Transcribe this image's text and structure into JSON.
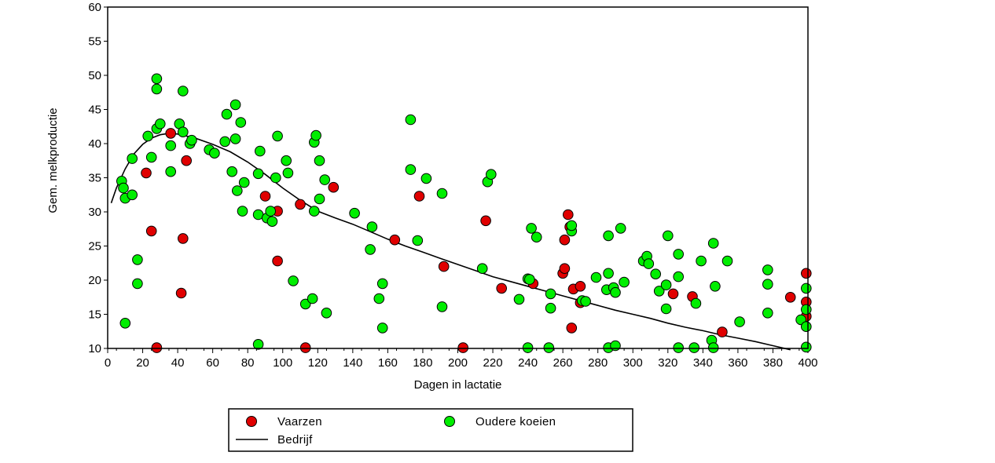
{
  "chart_data": {
    "type": "scatter",
    "xlabel": "Dagen in lactatie",
    "ylabel": "Gem. melkproductie",
    "xlim": [
      0,
      400
    ],
    "ylim": [
      10,
      60
    ],
    "xticks": [
      0,
      20,
      40,
      60,
      80,
      100,
      120,
      140,
      160,
      180,
      200,
      220,
      240,
      260,
      280,
      300,
      320,
      340,
      360,
      380,
      400
    ],
    "yticks": [
      10,
      15,
      20,
      25,
      30,
      35,
      40,
      45,
      50,
      55,
      60
    ],
    "legend_position": "bottom",
    "colors": {
      "vaarzen": "#e00000",
      "oudere": "#00ee00",
      "line": "#000000",
      "marker_edge": "#000000"
    },
    "series": [
      {
        "name": "Vaarzen",
        "kind": "scatter",
        "points": [
          [
            22,
            35.7
          ],
          [
            25,
            27.2
          ],
          [
            28,
            10.1
          ],
          [
            36,
            41.5
          ],
          [
            42,
            18.1
          ],
          [
            43,
            26.1
          ],
          [
            45,
            37.5
          ],
          [
            90,
            32.3
          ],
          [
            97,
            30.1
          ],
          [
            97,
            22.8
          ],
          [
            110,
            31.1
          ],
          [
            113,
            10.1
          ],
          [
            129,
            33.6
          ],
          [
            164,
            25.9
          ],
          [
            178,
            32.3
          ],
          [
            192,
            22.0
          ],
          [
            203,
            10.1
          ],
          [
            216,
            28.7
          ],
          [
            225,
            18.8
          ],
          [
            243,
            19.5
          ],
          [
            260,
            21.0
          ],
          [
            261,
            21.7
          ],
          [
            261,
            25.9
          ],
          [
            263,
            29.6
          ],
          [
            264,
            27.8
          ],
          [
            265,
            13.0
          ],
          [
            266,
            18.7
          ],
          [
            270,
            19.1
          ],
          [
            270,
            16.7
          ],
          [
            323,
            18.0
          ],
          [
            334,
            17.6
          ],
          [
            351,
            12.4
          ],
          [
            390,
            17.5
          ],
          [
            399,
            21.0
          ],
          [
            399,
            16.8
          ],
          [
            399,
            14.7
          ]
        ]
      },
      {
        "name": "Oudere koeien",
        "kind": "scatter",
        "points": [
          [
            8,
            34.5
          ],
          [
            9,
            33.5
          ],
          [
            10,
            13.7
          ],
          [
            10,
            32.0
          ],
          [
            14,
            37.8
          ],
          [
            14,
            32.5
          ],
          [
            17,
            23.0
          ],
          [
            17,
            19.5
          ],
          [
            23,
            41.1
          ],
          [
            25,
            38.0
          ],
          [
            28,
            49.5
          ],
          [
            28,
            48.0
          ],
          [
            28,
            42.2
          ],
          [
            30,
            42.9
          ],
          [
            36,
            39.7
          ],
          [
            36,
            35.9
          ],
          [
            41,
            42.9
          ],
          [
            43,
            47.7
          ],
          [
            43,
            41.7
          ],
          [
            47,
            40.0
          ],
          [
            48,
            40.5
          ],
          [
            58,
            39.1
          ],
          [
            61,
            38.6
          ],
          [
            67,
            40.3
          ],
          [
            68,
            44.3
          ],
          [
            71,
            35.9
          ],
          [
            73,
            40.7
          ],
          [
            73,
            45.7
          ],
          [
            74,
            33.1
          ],
          [
            76,
            43.1
          ],
          [
            77,
            30.1
          ],
          [
            78,
            34.3
          ],
          [
            86,
            35.6
          ],
          [
            86,
            29.6
          ],
          [
            87,
            38.9
          ],
          [
            86,
            10.6
          ],
          [
            91,
            29.1
          ],
          [
            93,
            30.1
          ],
          [
            94,
            28.6
          ],
          [
            96,
            35.0
          ],
          [
            97,
            41.1
          ],
          [
            102,
            37.5
          ],
          [
            103,
            35.7
          ],
          [
            106,
            19.9
          ],
          [
            113,
            16.5
          ],
          [
            117,
            17.3
          ],
          [
            118,
            40.2
          ],
          [
            118,
            30.1
          ],
          [
            119,
            41.2
          ],
          [
            121,
            37.5
          ],
          [
            121,
            31.9
          ],
          [
            124,
            34.7
          ],
          [
            125,
            15.2
          ],
          [
            141,
            29.8
          ],
          [
            150,
            24.5
          ],
          [
            151,
            27.8
          ],
          [
            155,
            17.3
          ],
          [
            157,
            13.0
          ],
          [
            157,
            19.5
          ],
          [
            173,
            43.5
          ],
          [
            173,
            36.2
          ],
          [
            177,
            25.8
          ],
          [
            182,
            34.9
          ],
          [
            191,
            32.7
          ],
          [
            191,
            16.1
          ],
          [
            214,
            21.7
          ],
          [
            217,
            34.4
          ],
          [
            219,
            35.5
          ],
          [
            235,
            17.2
          ],
          [
            240,
            10.1
          ],
          [
            240,
            20.2
          ],
          [
            241,
            20.1
          ],
          [
            242,
            27.6
          ],
          [
            245,
            26.3
          ],
          [
            252,
            10.1
          ],
          [
            253,
            15.9
          ],
          [
            253,
            18.0
          ],
          [
            265,
            27.2
          ],
          [
            265,
            28.0
          ],
          [
            271,
            17.0
          ],
          [
            273,
            16.9
          ],
          [
            279,
            20.4
          ],
          [
            285,
            18.6
          ],
          [
            286,
            21.0
          ],
          [
            286,
            10.1
          ],
          [
            286,
            26.5
          ],
          [
            289,
            18.9
          ],
          [
            290,
            18.2
          ],
          [
            290,
            10.4
          ],
          [
            293,
            27.6
          ],
          [
            295,
            19.7
          ],
          [
            306,
            22.8
          ],
          [
            308,
            23.5
          ],
          [
            309,
            22.4
          ],
          [
            313,
            20.9
          ],
          [
            315,
            18.4
          ],
          [
            319,
            19.3
          ],
          [
            319,
            15.8
          ],
          [
            320,
            26.5
          ],
          [
            326,
            23.8
          ],
          [
            326,
            20.5
          ],
          [
            326,
            10.1
          ],
          [
            339,
            22.8
          ],
          [
            336,
            16.6
          ],
          [
            335,
            10.1
          ],
          [
            345,
            11.2
          ],
          [
            346,
            25.4
          ],
          [
            347,
            19.1
          ],
          [
            346,
            10.1
          ],
          [
            354,
            22.8
          ],
          [
            361,
            13.9
          ],
          [
            377,
            21.5
          ],
          [
            377,
            19.4
          ],
          [
            377,
            15.2
          ],
          [
            396,
            14.2
          ],
          [
            399,
            18.8
          ],
          [
            399,
            15.7
          ],
          [
            399,
            13.2
          ],
          [
            399,
            10.2
          ]
        ]
      },
      {
        "name": "Bedrijf",
        "kind": "line",
        "points": [
          [
            2,
            31.3
          ],
          [
            5,
            33.5
          ],
          [
            10,
            36.3
          ],
          [
            15,
            38.5
          ],
          [
            20,
            39.9
          ],
          [
            25,
            40.8
          ],
          [
            30,
            41.3
          ],
          [
            35,
            41.5
          ],
          [
            40,
            41.4
          ],
          [
            50,
            40.8
          ],
          [
            60,
            39.9
          ],
          [
            70,
            38.8
          ],
          [
            80,
            37.3
          ],
          [
            90,
            35.5
          ],
          [
            100,
            33.5
          ],
          [
            110,
            31.7
          ],
          [
            120,
            30.1
          ],
          [
            130,
            29.1
          ],
          [
            140,
            28.2
          ],
          [
            150,
            27.1
          ],
          [
            160,
            26.0
          ],
          [
            170,
            25.0
          ],
          [
            180,
            24.1
          ],
          [
            190,
            23.2
          ],
          [
            200,
            22.3
          ],
          [
            210,
            21.4
          ],
          [
            220,
            20.5
          ],
          [
            230,
            19.8
          ],
          [
            240,
            19.1
          ],
          [
            250,
            18.4
          ],
          [
            260,
            17.7
          ],
          [
            270,
            17.0
          ],
          [
            280,
            16.3
          ],
          [
            290,
            15.6
          ],
          [
            300,
            15.0
          ],
          [
            310,
            14.4
          ],
          [
            320,
            13.7
          ],
          [
            330,
            13.1
          ],
          [
            340,
            12.6
          ],
          [
            350,
            12.0
          ],
          [
            360,
            11.5
          ],
          [
            370,
            11.0
          ],
          [
            380,
            10.4
          ],
          [
            390,
            9.8
          ]
        ]
      }
    ]
  }
}
